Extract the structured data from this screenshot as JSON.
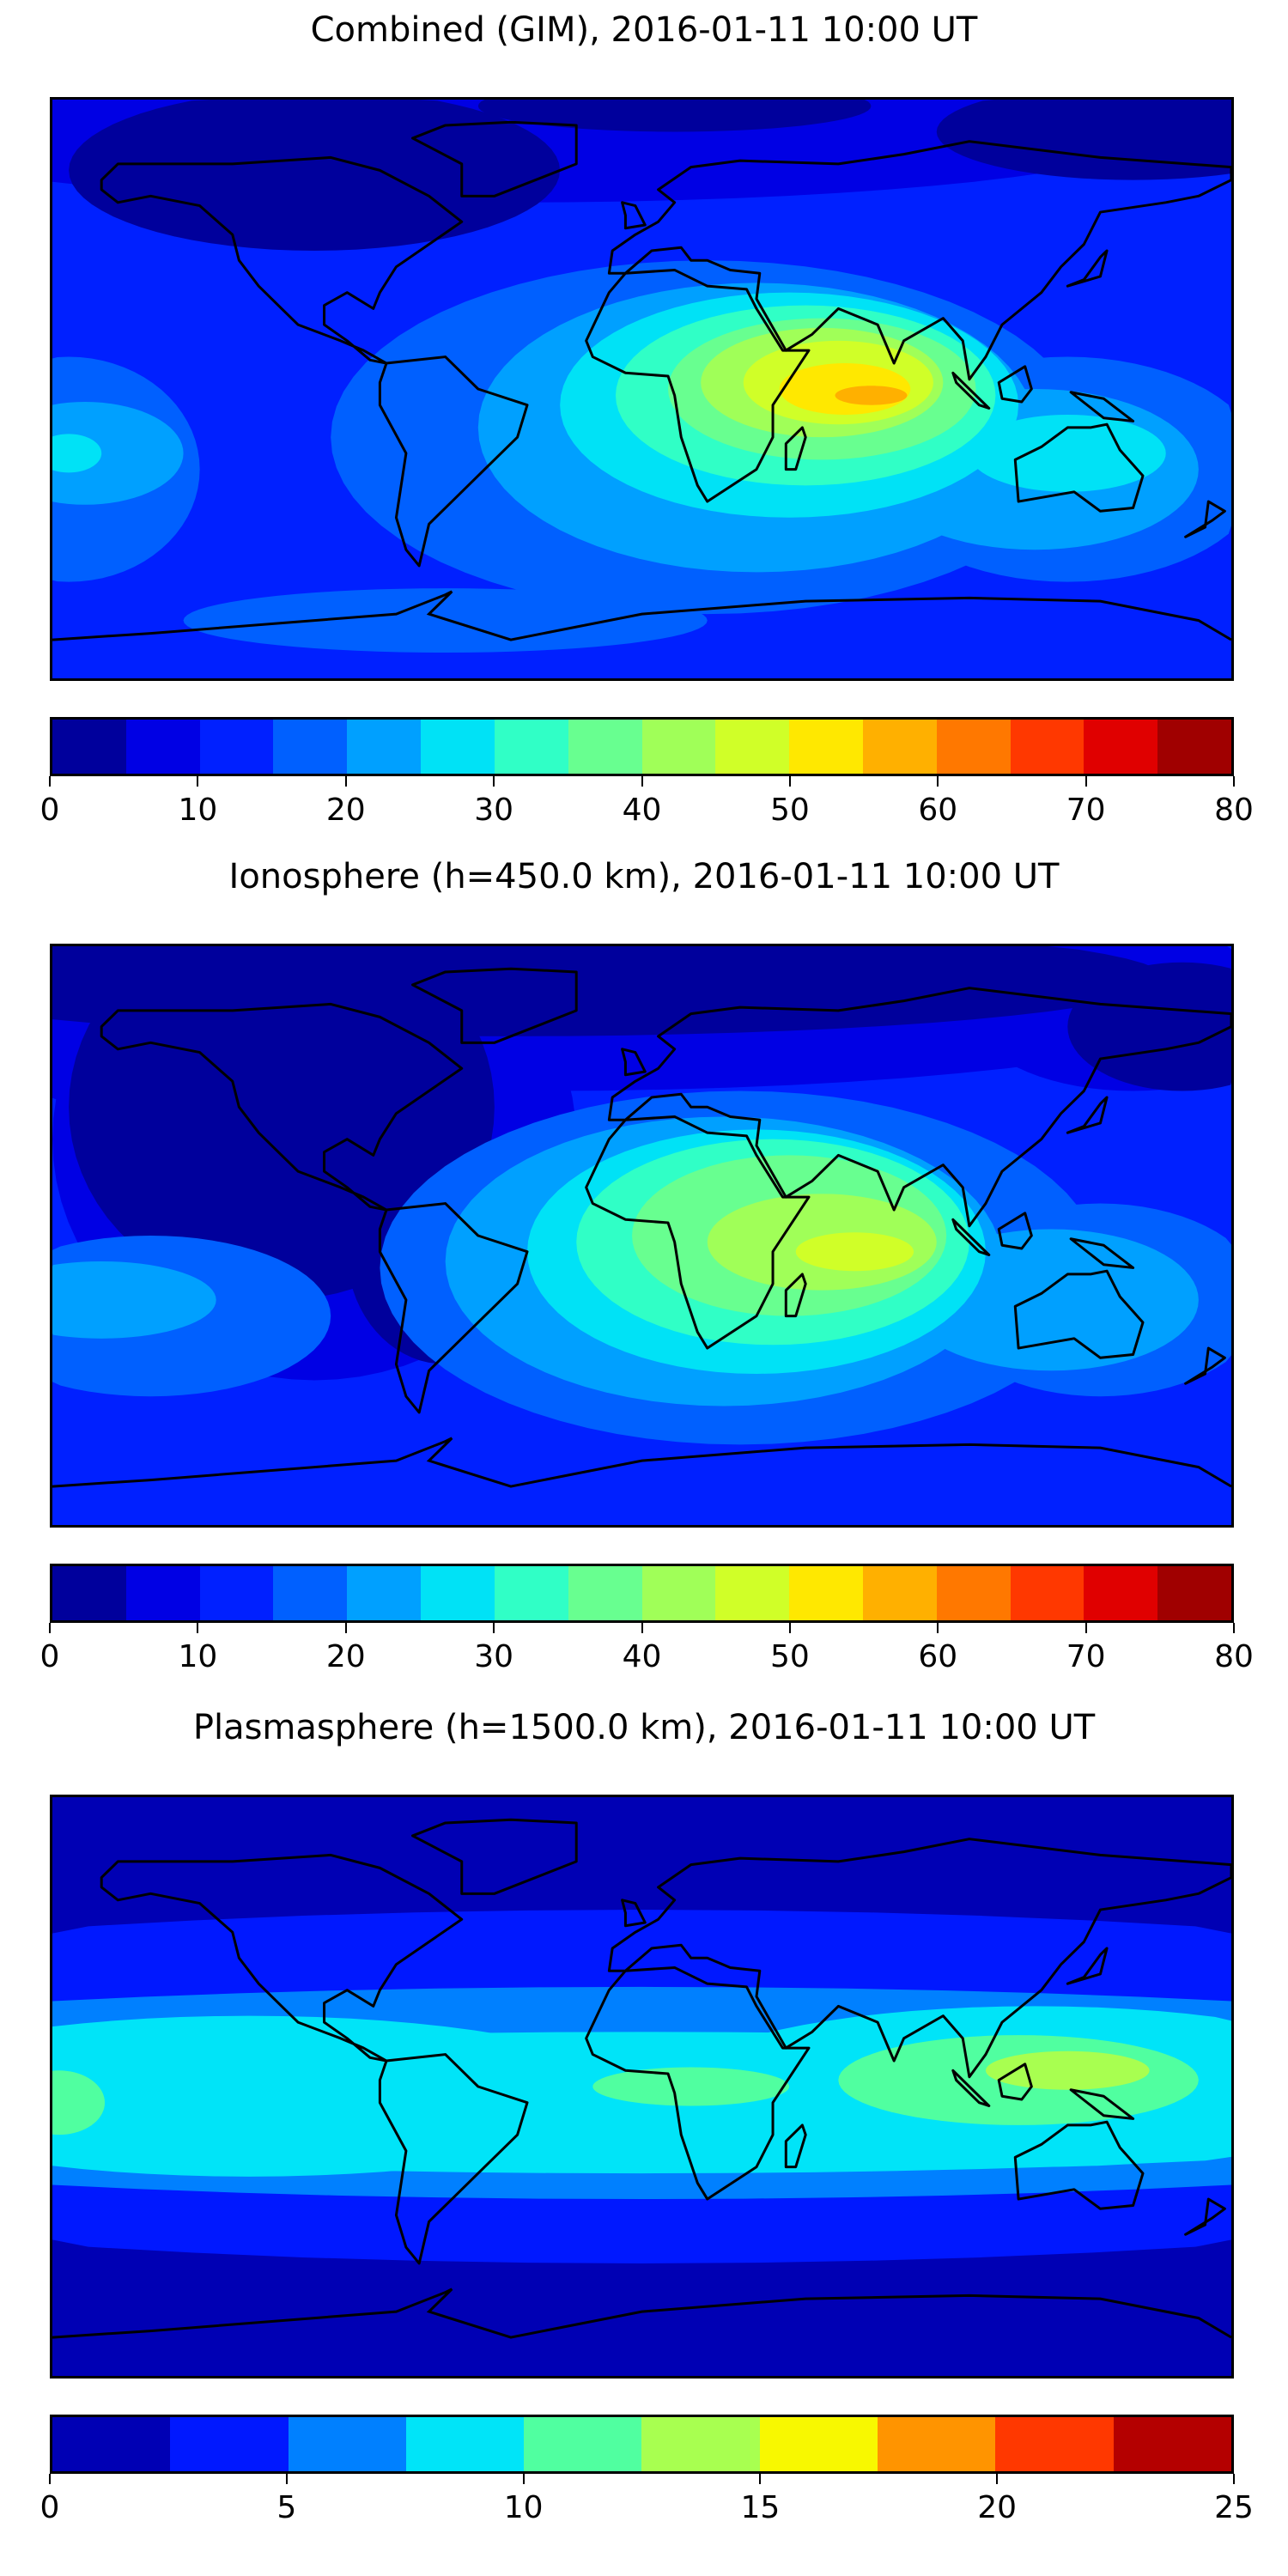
{
  "chart_data": [
    {
      "type": "heatmap",
      "subtype": "filled-contour world map",
      "title": "Combined (GIM), 2016-01-11 10:00 UT",
      "colorbar": {
        "range": [
          0,
          80
        ],
        "step": 5,
        "ticks": [
          "0",
          "10",
          "20",
          "30",
          "40",
          "50",
          "60",
          "70",
          "80"
        ],
        "colors": [
          "#00009c",
          "#0000e4",
          "#0020ff",
          "#0060ff",
          "#00a0ff",
          "#00e2f6",
          "#30ffc6",
          "#68ff90",
          "#a0ff58",
          "#d0ff28",
          "#ffe800",
          "#ffb000",
          "#ff7800",
          "#ff3800",
          "#e00000",
          "#a00000"
        ]
      },
      "max_region": "Indian Ocean, ~55-60",
      "xlabel": "",
      "ylabel": ""
    },
    {
      "type": "heatmap",
      "subtype": "filled-contour world map",
      "title": "Ionosphere  (h=450.0 km), 2016-01-11 10:00 UT",
      "colorbar": {
        "range": [
          0,
          80
        ],
        "step": 5,
        "ticks": [
          "0",
          "10",
          "20",
          "30",
          "40",
          "50",
          "60",
          "70",
          "80"
        ],
        "colors": [
          "#00009c",
          "#0000e4",
          "#0020ff",
          "#0060ff",
          "#00a0ff",
          "#00e2f6",
          "#30ffc6",
          "#68ff90",
          "#a0ff58",
          "#d0ff28",
          "#ffe800",
          "#ffb000",
          "#ff7800",
          "#ff3800",
          "#e00000",
          "#a00000"
        ]
      },
      "max_region": "Indian Ocean, ~45-50",
      "xlabel": "",
      "ylabel": ""
    },
    {
      "type": "heatmap",
      "subtype": "filled-contour world map",
      "title": "Plasmasphere (h=1500.0 km), 2016-01-11 10:00 UT",
      "colorbar": {
        "range": [
          0,
          25
        ],
        "step": 2.5,
        "ticks": [
          "0",
          "5",
          "10",
          "15",
          "20",
          "25"
        ],
        "colors": [
          "#0000b4",
          "#0018ff",
          "#0080ff",
          "#00e4f8",
          "#50ffa0",
          "#a8ff50",
          "#f8f800",
          "#ff9400",
          "#ff3800",
          "#b40000"
        ]
      },
      "max_region": "Maritime Continent, ~12.5-15",
      "xlabel": "",
      "ylabel": ""
    }
  ]
}
